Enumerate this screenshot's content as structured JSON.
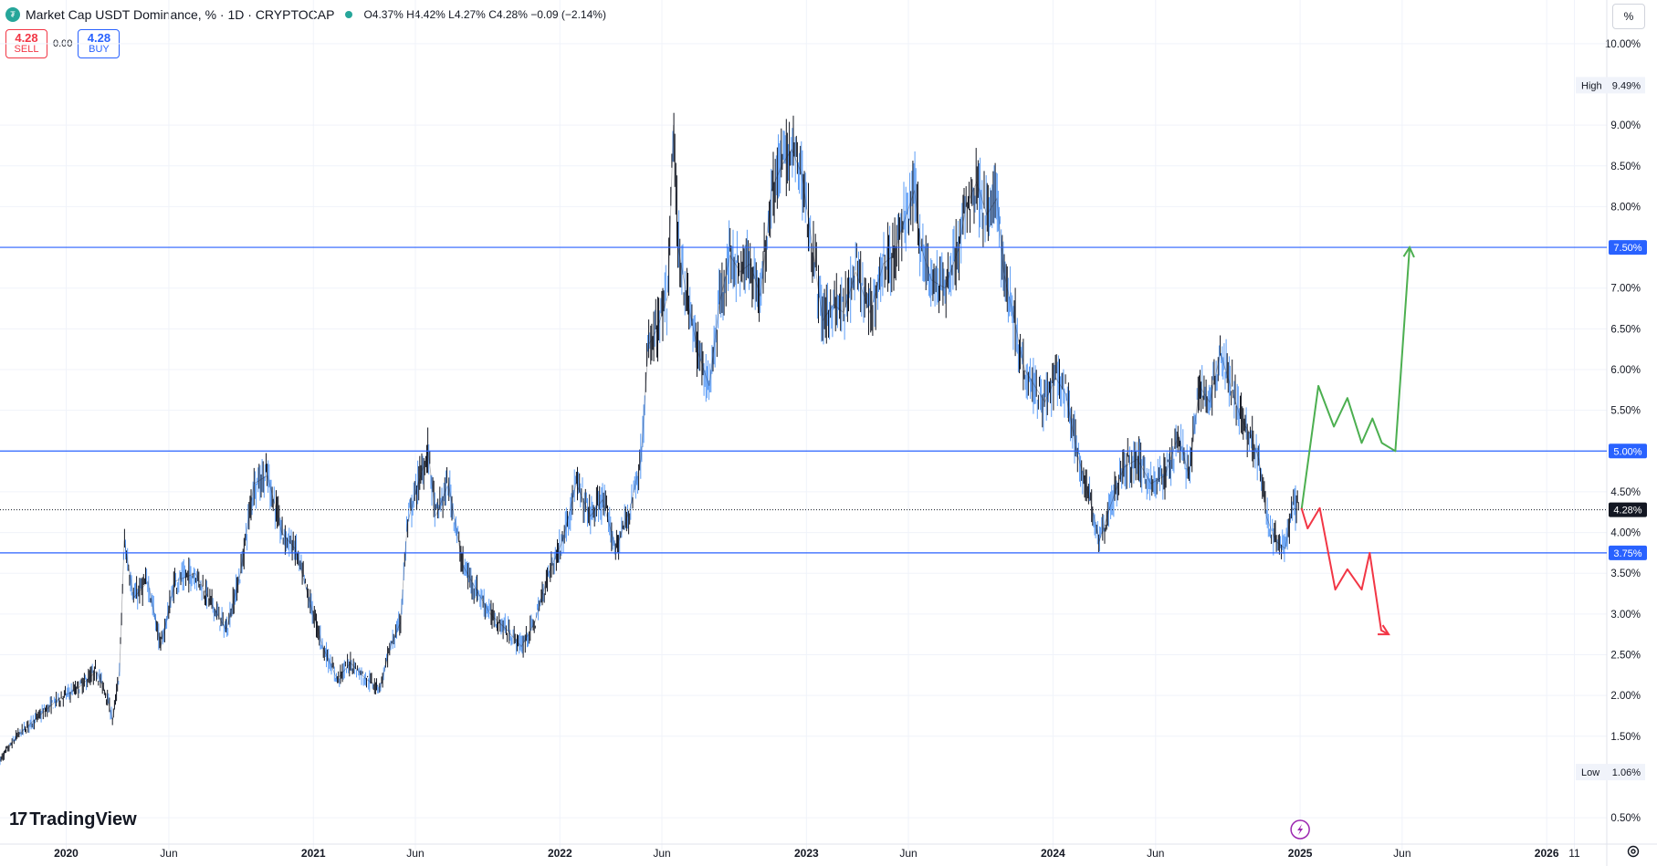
{
  "header": {
    "title": "Market Cap USDT Dominance, % · 1D · CRYPTOCAP",
    "ohlc": "O4.37% H4.42% L4.27% C4.28% −0.09 (−2.14%)"
  },
  "trade": {
    "sell_price": "4.28",
    "sell_label": "SELL",
    "spread": "0.00",
    "buy_price": "4.28",
    "buy_label": "BUY"
  },
  "scale_button": "%",
  "branding": "TradingView",
  "icons": {
    "settings": "gear-icon",
    "flash": "lightning-icon",
    "logo": "tradingview-logo-icon"
  },
  "colors": {
    "candle": "#131722",
    "wick_up": "#5b9cf6",
    "level": "#2962ff",
    "bull": "#4caf50",
    "bear": "#f23645",
    "price_label": "#131722"
  },
  "chart_data": {
    "type": "line",
    "title": "Market Cap USDT Dominance, % · 1D · CRYPTOCAP",
    "y_unit": "%",
    "ylim": [
      0.4,
      10.2
    ],
    "y_ticks": [
      "10.00%",
      "9.00%",
      "8.50%",
      "8.00%",
      "7.00%",
      "6.50%",
      "6.00%",
      "5.50%",
      "4.50%",
      "4.00%",
      "3.50%",
      "3.00%",
      "2.50%",
      "2.00%",
      "1.50%",
      "0.50%"
    ],
    "y_tick_values": [
      10.0,
      9.0,
      8.5,
      8.0,
      7.0,
      6.5,
      6.0,
      5.5,
      4.5,
      4.0,
      3.5,
      3.0,
      2.5,
      2.0,
      1.5,
      0.5
    ],
    "x_range": [
      "2019-09-25",
      "2026-03-31"
    ],
    "x_ticks": [
      {
        "label": "2020",
        "date": "2020-01-01"
      },
      {
        "label": "Jun",
        "date": "2020-06-01"
      },
      {
        "label": "2021",
        "date": "2021-01-01"
      },
      {
        "label": "Jun",
        "date": "2021-06-01"
      },
      {
        "label": "2022",
        "date": "2022-01-01"
      },
      {
        "label": "Jun",
        "date": "2022-06-01"
      },
      {
        "label": "2023",
        "date": "2023-01-01"
      },
      {
        "label": "Jun",
        "date": "2023-06-01"
      },
      {
        "label": "2024",
        "date": "2024-01-01"
      },
      {
        "label": "Jun",
        "date": "2024-06-01"
      },
      {
        "label": "2025",
        "date": "2025-01-01"
      },
      {
        "label": "Jun",
        "date": "2025-06-01"
      },
      {
        "label": "2026",
        "date": "2026-01-01"
      },
      {
        "label": "11",
        "date": "2026-02-11"
      }
    ],
    "series": [
      {
        "name": "USDT.D",
        "points": [
          [
            "2019-09-25",
            1.2
          ],
          [
            "2019-10-20",
            1.5
          ],
          [
            "2019-11-15",
            1.7
          ],
          [
            "2019-12-20",
            1.95
          ],
          [
            "2020-01-20",
            2.1
          ],
          [
            "2020-02-15",
            2.3
          ],
          [
            "2020-03-01",
            2.0
          ],
          [
            "2020-03-10",
            1.7
          ],
          [
            "2020-03-20",
            2.3
          ],
          [
            "2020-03-27",
            3.9
          ],
          [
            "2020-04-10",
            3.2
          ],
          [
            "2020-05-01",
            3.4
          ],
          [
            "2020-05-20",
            2.6
          ],
          [
            "2020-06-10",
            3.4
          ],
          [
            "2020-07-10",
            3.5
          ],
          [
            "2020-08-05",
            3.1
          ],
          [
            "2020-08-25",
            2.8
          ],
          [
            "2020-09-15",
            3.5
          ],
          [
            "2020-10-05",
            4.6
          ],
          [
            "2020-10-25",
            4.7
          ],
          [
            "2020-11-15",
            4.0
          ],
          [
            "2020-12-05",
            3.8
          ],
          [
            "2020-12-25",
            3.2
          ],
          [
            "2021-01-15",
            2.6
          ],
          [
            "2021-02-05",
            2.2
          ],
          [
            "2021-02-25",
            2.4
          ],
          [
            "2021-03-20",
            2.2
          ],
          [
            "2021-04-10",
            2.1
          ],
          [
            "2021-04-25",
            2.6
          ],
          [
            "2021-05-10",
            2.9
          ],
          [
            "2021-05-20",
            4.1
          ],
          [
            "2021-06-05",
            4.6
          ],
          [
            "2021-06-20",
            5.0
          ],
          [
            "2021-07-01",
            4.2
          ],
          [
            "2021-07-20",
            4.6
          ],
          [
            "2021-08-10",
            3.6
          ],
          [
            "2021-08-30",
            3.3
          ],
          [
            "2021-09-20",
            3.0
          ],
          [
            "2021-10-15",
            2.8
          ],
          [
            "2021-11-05",
            2.6
          ],
          [
            "2021-11-25",
            2.9
          ],
          [
            "2021-12-15",
            3.5
          ],
          [
            "2022-01-05",
            3.9
          ],
          [
            "2022-01-25",
            4.6
          ],
          [
            "2022-02-15",
            4.2
          ],
          [
            "2022-03-05",
            4.4
          ],
          [
            "2022-03-25",
            3.8
          ],
          [
            "2022-04-15",
            4.3
          ],
          [
            "2022-05-01",
            4.9
          ],
          [
            "2022-05-12",
            6.3
          ],
          [
            "2022-05-25",
            6.5
          ],
          [
            "2022-06-10",
            6.9
          ],
          [
            "2022-06-18",
            9.0
          ],
          [
            "2022-06-25",
            7.5
          ],
          [
            "2022-07-10",
            6.8
          ],
          [
            "2022-07-25",
            6.2
          ],
          [
            "2022-08-10",
            5.8
          ],
          [
            "2022-08-25",
            6.8
          ],
          [
            "2022-09-10",
            7.4
          ],
          [
            "2022-09-25",
            7.2
          ],
          [
            "2022-10-10",
            7.3
          ],
          [
            "2022-10-25",
            6.9
          ],
          [
            "2022-11-10",
            8.2
          ],
          [
            "2022-11-25",
            8.5
          ],
          [
            "2022-12-10",
            8.7
          ],
          [
            "2022-12-25",
            8.4
          ],
          [
            "2023-01-10",
            7.5
          ],
          [
            "2023-01-25",
            6.6
          ],
          [
            "2023-02-10",
            6.8
          ],
          [
            "2023-02-25",
            6.7
          ],
          [
            "2023-03-15",
            7.2
          ],
          [
            "2023-04-05",
            6.7
          ],
          [
            "2023-04-25",
            7.3
          ],
          [
            "2023-05-10",
            7.4
          ],
          [
            "2023-05-25",
            7.8
          ],
          [
            "2023-06-10",
            8.2
          ],
          [
            "2023-06-20",
            7.5
          ],
          [
            "2023-07-05",
            7.1
          ],
          [
            "2023-07-25",
            7.0
          ],
          [
            "2023-08-15",
            7.5
          ],
          [
            "2023-08-25",
            8.0
          ],
          [
            "2023-09-10",
            8.3
          ],
          [
            "2023-09-25",
            7.9
          ],
          [
            "2023-10-10",
            8.1
          ],
          [
            "2023-10-20",
            7.2
          ],
          [
            "2023-11-05",
            6.6
          ],
          [
            "2023-11-20",
            6.0
          ],
          [
            "2023-12-05",
            5.8
          ],
          [
            "2023-12-20",
            5.6
          ],
          [
            "2024-01-05",
            5.9
          ],
          [
            "2024-01-20",
            5.7
          ],
          [
            "2024-02-05",
            5.0
          ],
          [
            "2024-02-25",
            4.4
          ],
          [
            "2024-03-10",
            3.9
          ],
          [
            "2024-03-25",
            4.3
          ],
          [
            "2024-04-15",
            4.8
          ],
          [
            "2024-05-05",
            4.9
          ],
          [
            "2024-05-25",
            4.6
          ],
          [
            "2024-06-15",
            4.7
          ],
          [
            "2024-07-05",
            5.2
          ],
          [
            "2024-07-20",
            4.7
          ],
          [
            "2024-08-05",
            5.8
          ],
          [
            "2024-08-20",
            5.6
          ],
          [
            "2024-09-05",
            6.2
          ],
          [
            "2024-09-20",
            5.8
          ],
          [
            "2024-10-05",
            5.4
          ],
          [
            "2024-10-20",
            5.2
          ],
          [
            "2024-11-01",
            4.9
          ],
          [
            "2024-11-12",
            4.2
          ],
          [
            "2024-11-25",
            3.9
          ],
          [
            "2024-12-10",
            3.8
          ],
          [
            "2024-12-20",
            4.3
          ],
          [
            "2024-12-30",
            4.28
          ]
        ]
      }
    ],
    "horizontal_levels": [
      {
        "value": 7.5,
        "label": "7.50%"
      },
      {
        "value": 5.0,
        "label": "5.00%"
      },
      {
        "value": 3.75,
        "label": "3.75%"
      }
    ],
    "last_price": {
      "value": 4.28,
      "label": "4.28%"
    },
    "high_marker": {
      "label": "High",
      "value": 9.49,
      "value_label": "9.49%"
    },
    "low_marker": {
      "label": "Low",
      "value": 1.06,
      "value_label": "1.06%"
    },
    "projections": [
      {
        "name": "bullish-path",
        "color": "#4caf50",
        "points": [
          [
            "2025-01-03",
            4.28
          ],
          [
            "2025-01-28",
            5.8
          ],
          [
            "2025-02-20",
            5.3
          ],
          [
            "2025-03-12",
            5.65
          ],
          [
            "2025-04-02",
            5.1
          ],
          [
            "2025-04-18",
            5.4
          ],
          [
            "2025-05-02",
            5.1
          ],
          [
            "2025-05-22",
            5.0
          ],
          [
            "2025-06-12",
            7.5
          ]
        ]
      },
      {
        "name": "bearish-path",
        "color": "#f23645",
        "points": [
          [
            "2025-01-03",
            4.3
          ],
          [
            "2025-01-12",
            4.05
          ],
          [
            "2025-01-30",
            4.3
          ],
          [
            "2025-02-22",
            3.3
          ],
          [
            "2025-03-12",
            3.55
          ],
          [
            "2025-04-02",
            3.3
          ],
          [
            "2025-04-14",
            3.75
          ],
          [
            "2025-05-01",
            2.8
          ],
          [
            "2025-05-12",
            2.75
          ]
        ]
      }
    ]
  }
}
